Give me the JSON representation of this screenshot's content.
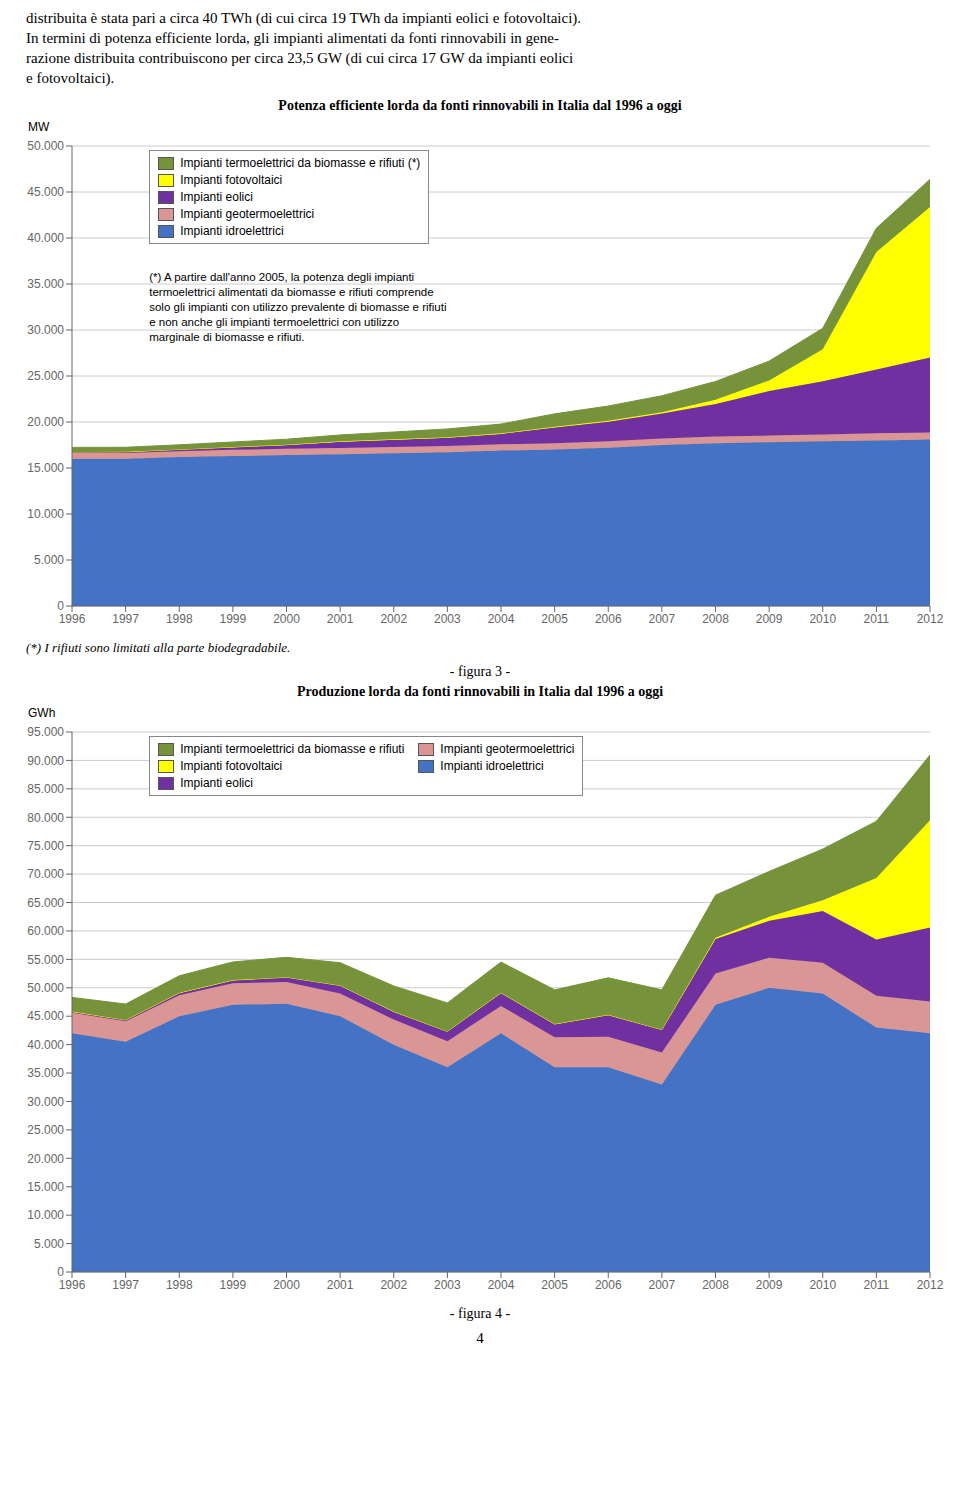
{
  "chart_data": [
    {
      "type": "area",
      "stacked": true,
      "title": "Potenza efficiente lorda da fonti rinnovabili in Italia dal 1996 a oggi",
      "ylabel": "MW",
      "x": [
        1996,
        1997,
        1998,
        1999,
        2000,
        2001,
        2002,
        2003,
        2004,
        2005,
        2006,
        2007,
        2008,
        2009,
        2010,
        2011,
        2012
      ],
      "xlim": [
        1996,
        2012
      ],
      "xticks": [
        1996,
        1997,
        1998,
        1999,
        2000,
        2001,
        2002,
        2003,
        2004,
        2005,
        2006,
        2007,
        2008,
        2009,
        2010,
        2011,
        2012
      ],
      "ylim": [
        0,
        50000
      ],
      "yticks": [
        0,
        {
          "value": 5000,
          "label": "5.000"
        },
        {
          "value": 10000,
          "label": "10.000"
        },
        {
          "value": 15000,
          "label": "15.000"
        },
        {
          "value": 20000,
          "label": "20.000"
        },
        {
          "value": 25000,
          "label": "25.000"
        },
        {
          "value": 30000,
          "label": "30.000"
        },
        {
          "value": 35000,
          "label": "35.000"
        },
        {
          "value": 40000,
          "label": "40.000"
        },
        {
          "value": 45000,
          "label": "45.000"
        },
        {
          "value": 50000,
          "label": "50.000"
        }
      ],
      "grid": true,
      "legend": "upper left",
      "series": [
        {
          "name": "Impianti idroelettrici",
          "color": "#4472C4",
          "values": [
            16000,
            16000,
            16200,
            16300,
            16400,
            16500,
            16600,
            16700,
            16900,
            17000,
            17200,
            17500,
            17700,
            17800,
            17900,
            18000,
            18100
          ]
        },
        {
          "name": "Impianti geotermoelettrici",
          "color": "#DA9694",
          "values": [
            626,
            626,
            626,
            681,
            681,
            681,
            681,
            681,
            681,
            681,
            695,
            711,
            711,
            728,
            728,
            772,
            772
          ]
        },
        {
          "name": "Impianti eolici",
          "color": "#7030A0",
          "values": [
            103,
            115,
            180,
            280,
            427,
            682,
            785,
            904,
            1125,
            1718,
            2123,
            2726,
            3537,
            4850,
            5797,
            6936,
            8144
          ]
        },
        {
          "name": "Impianti fotovoltaici",
          "color": "#FFFF00",
          "values": [
            12,
            14,
            16,
            18,
            22,
            34,
            48,
            60,
            70,
            86,
            120,
            120,
            458,
            1142,
            3470,
            12764,
            16361
          ]
        },
        {
          "name": "Impianti termoelettrici da biomasse e rifiuti (*)",
          "color": "#76933C",
          "values": [
            500,
            500,
            500,
            550,
            600,
            700,
            800,
            900,
            1000,
            1400,
            1600,
            1800,
            2000,
            2100,
            2300,
            2600,
            3000
          ]
        }
      ],
      "annotations": [
        "distribuita è stata pari a circa 40 TWh (di cui circa 19 TWh da impianti eolici e fotovoltaici).",
        "In termini di potenza efficiente lorda, gli impianti alimentati da fonti rinnovabili in gene-",
        "razione distribuita contribuiscono per circa 23,5 GW (di cui circa 17 GW da impianti eolici",
        "e fotovoltaici).",
        "(*) A partire dall'anno 2005, la potenza degli impianti\ntermoelettrici alimentati da biomasse e rifiuti comprende\nsolo gli impianti con utilizzo prevalente di biomasse e rifiuti\ne non anche gli impianti termoelettrici con utilizzo\nmarginale di biomasse e rifiuti.",
        "(*) I rifiuti sono limitati alla parte biodegradabile.",
        "- figura 3 -"
      ]
    },
    {
      "type": "area",
      "stacked": true,
      "title": "Produzione lorda da fonti rinnovabili in Italia dal 1996 a oggi",
      "ylabel": "GWh",
      "x": [
        1996,
        1997,
        1998,
        1999,
        2000,
        2001,
        2002,
        2003,
        2004,
        2005,
        2006,
        2007,
        2008,
        2009,
        2010,
        2011,
        2012
      ],
      "xlim": [
        1996,
        2012
      ],
      "xticks": [
        1996,
        1997,
        1998,
        1999,
        2000,
        2001,
        2002,
        2003,
        2004,
        2005,
        2006,
        2007,
        2008,
        2009,
        2010,
        2011,
        2012
      ],
      "ylim": [
        0,
        95000
      ],
      "yticks": [
        0,
        {
          "value": 5000,
          "label": "5.000"
        },
        {
          "value": 10000,
          "label": "10.000"
        },
        {
          "value": 15000,
          "label": "15.000"
        },
        {
          "value": 20000,
          "label": "20.000"
        },
        {
          "value": 25000,
          "label": "25.000"
        },
        {
          "value": 30000,
          "label": "30.000"
        },
        {
          "value": 35000,
          "label": "35.000"
        },
        {
          "value": 40000,
          "label": "40.000"
        },
        {
          "value": 45000,
          "label": "45.000"
        },
        {
          "value": 50000,
          "label": "50.000"
        },
        {
          "value": 55000,
          "label": "55.000"
        },
        {
          "value": 60000,
          "label": "60.000"
        },
        {
          "value": 65000,
          "label": "65.000"
        },
        {
          "value": 70000,
          "label": "70.000"
        },
        {
          "value": 75000,
          "label": "75.000"
        },
        {
          "value": 80000,
          "label": "80.000"
        },
        {
          "value": 85000,
          "label": "85.000"
        },
        {
          "value": 90000,
          "label": "90.000"
        },
        {
          "value": 95000,
          "label": "95.000"
        }
      ],
      "grid": true,
      "legend": "upper left",
      "series": [
        {
          "name": "Impianti idroelettrici",
          "color": "#4472C4",
          "values": [
            42000,
            40500,
            45000,
            47000,
            47200,
            45000,
            40000,
            36000,
            42000,
            36000,
            36000,
            33000,
            47000,
            50000,
            49000,
            43000,
            42000
          ]
        },
        {
          "name": "Impianti geotermoelettrici",
          "color": "#DA9694",
          "values": [
            3600,
            3600,
            3700,
            3800,
            3800,
            4000,
            4400,
            4600,
            4800,
            5300,
            5400,
            5600,
            5500,
            5300,
            5400,
            5600,
            5600
          ]
        },
        {
          "name": "Impianti eolici",
          "color": "#7030A0",
          "values": [
            200,
            230,
            400,
            540,
            850,
            1400,
            1400,
            1700,
            2300,
            2300,
            3800,
            4000,
            6100,
            6500,
            9100,
            9900,
            13000
          ]
        },
        {
          "name": "Impianti fotovoltaici",
          "color": "#FFFF00",
          "values": [
            9,
            10,
            11,
            12,
            13,
            15,
            25,
            30,
            35,
            37,
            50,
            39,
            193,
            676,
            1906,
            10796,
            18862
          ]
        },
        {
          "name": "Impianti termoelettrici da biomasse e rifiuti",
          "color": "#76933C",
          "values": [
            2500,
            2800,
            3000,
            3200,
            3500,
            4000,
            4500,
            5000,
            5400,
            6000,
            6500,
            7000,
            7500,
            8000,
            9000,
            10000,
            11500
          ]
        }
      ],
      "annotations": [
        "- figura 4 -",
        "4"
      ]
    }
  ]
}
